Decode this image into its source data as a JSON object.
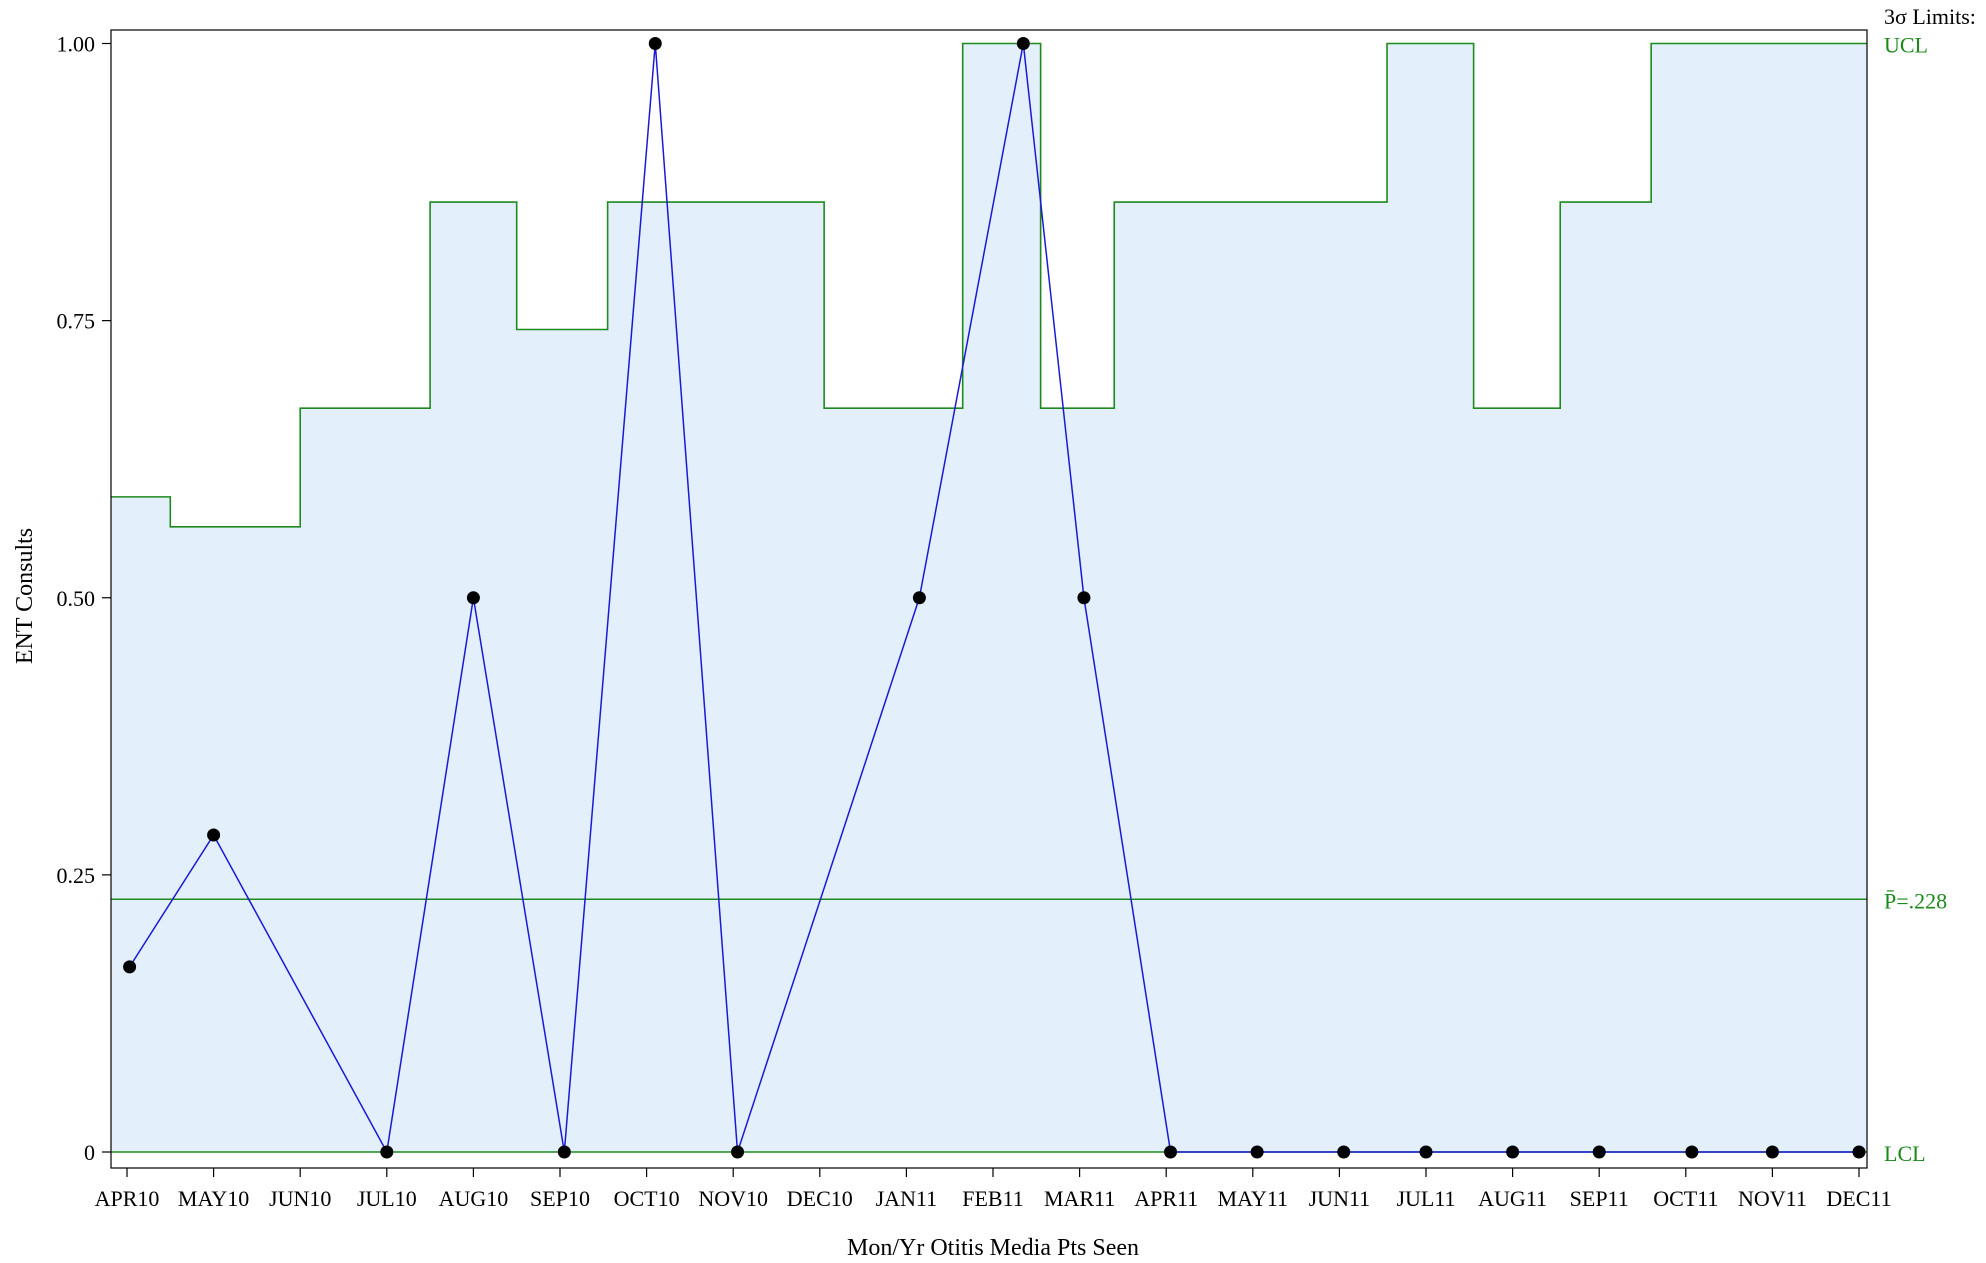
{
  "chart_data": {
    "type": "line",
    "chart_kind": "p-chart (control chart) with stepped 3-sigma limits",
    "xlabel": "Mon/Yr Otitis Media Pts Seen",
    "ylabel": "ENT Consults",
    "categories": [
      "APR10",
      "MAY10",
      "JUN10",
      "JUL10",
      "AUG10",
      "SEP10",
      "OCT10",
      "NOV10",
      "DEC10",
      "JAN11",
      "FEB11",
      "MAR11",
      "APR11",
      "MAY11",
      "JUN11",
      "JUL11",
      "AUG11",
      "SEP11",
      "OCT11",
      "NOV11",
      "DEC11"
    ],
    "y_ticks": [
      0,
      0.25,
      0.5,
      0.75,
      1.0
    ],
    "y_tick_labels": [
      "0",
      "0.25",
      "0.50",
      "0.75",
      "1.00"
    ],
    "ylim": [
      -0.012,
      1.013
    ],
    "points": [
      {
        "x": 0.03,
        "y": 0.167
      },
      {
        "x": 1.0,
        "y": 0.286
      },
      {
        "x": 3.0,
        "y": 0.0
      },
      {
        "x": 4.0,
        "y": 0.5
      },
      {
        "x": 5.05,
        "y": 0.0
      },
      {
        "x": 6.1,
        "y": 1.0
      },
      {
        "x": 7.05,
        "y": 0.0
      },
      {
        "x": 9.15,
        "y": 0.5
      },
      {
        "x": 10.35,
        "y": 1.0
      },
      {
        "x": 11.05,
        "y": 0.5
      },
      {
        "x": 12.05,
        "y": 0.0
      },
      {
        "x": 13.05,
        "y": 0.0
      },
      {
        "x": 14.05,
        "y": 0.0
      },
      {
        "x": 15.0,
        "y": 0.0
      },
      {
        "x": 16.0,
        "y": 0.0
      },
      {
        "x": 17.0,
        "y": 0.0
      },
      {
        "x": 18.07,
        "y": 0.0
      },
      {
        "x": 19.0,
        "y": 0.0
      },
      {
        "x": 20.0,
        "y": 0.0
      }
    ],
    "center_line": 0.228,
    "lcl": 0.0,
    "ucl_steps": [
      {
        "x_start": -0.2,
        "x_end": 0.5,
        "ucl": 0.591
      },
      {
        "x_start": 0.5,
        "x_end": 2.0,
        "ucl": 0.564
      },
      {
        "x_start": 2.0,
        "x_end": 3.5,
        "ucl": 0.671
      },
      {
        "x_start": 3.5,
        "x_end": 4.5,
        "ucl": 0.857
      },
      {
        "x_start": 4.5,
        "x_end": 5.55,
        "ucl": 0.742
      },
      {
        "x_start": 5.55,
        "x_end": 8.05,
        "ucl": 0.857
      },
      {
        "x_start": 8.05,
        "x_end": 9.65,
        "ucl": 0.671
      },
      {
        "x_start": 9.65,
        "x_end": 10.55,
        "ucl": 1.0
      },
      {
        "x_start": 10.55,
        "x_end": 11.4,
        "ucl": 0.671
      },
      {
        "x_start": 11.4,
        "x_end": 14.55,
        "ucl": 0.857
      },
      {
        "x_start": 14.55,
        "x_end": 15.55,
        "ucl": 1.0
      },
      {
        "x_start": 15.55,
        "x_end": 16.55,
        "ucl": 0.671
      },
      {
        "x_start": 16.55,
        "x_end": 17.6,
        "ucl": 0.857
      },
      {
        "x_start": 17.6,
        "x_end": 20.3,
        "ucl": 1.0
      }
    ],
    "limits_title": "3σ Limits:",
    "ucl_label": "UCL",
    "center_label": "P̄=.228",
    "lcl_label": "LCL",
    "colors": {
      "series": "#1a1ad6",
      "limits": "#1e8a1e",
      "limit_text": "#1a8a1a",
      "band_fill": "#e3effb",
      "marker": "#000000"
    }
  }
}
